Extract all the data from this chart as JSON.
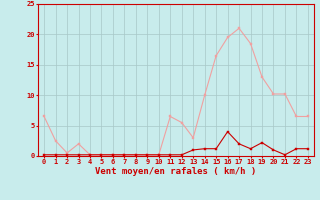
{
  "x": [
    0,
    1,
    2,
    3,
    4,
    5,
    6,
    7,
    8,
    9,
    10,
    11,
    12,
    13,
    14,
    15,
    16,
    17,
    18,
    19,
    20,
    21,
    22,
    23
  ],
  "y_rafales": [
    6.5,
    2.5,
    0.5,
    2.0,
    0.2,
    0.2,
    0.2,
    0.2,
    0.2,
    0.2,
    0.2,
    6.5,
    5.5,
    3.0,
    10.0,
    16.5,
    19.5,
    21.0,
    18.5,
    13.0,
    10.2,
    10.2,
    6.5,
    6.5
  ],
  "y_moyen": [
    0.2,
    0.2,
    0.2,
    0.2,
    0.2,
    0.2,
    0.2,
    0.2,
    0.2,
    0.2,
    0.2,
    0.2,
    0.2,
    1.0,
    1.2,
    1.2,
    4.0,
    2.0,
    1.2,
    2.2,
    1.0,
    0.2,
    1.2,
    1.2
  ],
  "color_rafales": "#f0a0a0",
  "color_moyen": "#cc0000",
  "bg_color": "#c8ecec",
  "grid_color": "#a8c8c8",
  "xlabel": "Vent moyen/en rafales ( km/h )",
  "ylim": [
    0,
    25
  ],
  "xlim_min": -0.5,
  "xlim_max": 23.5,
  "yticks": [
    0,
    5,
    10,
    15,
    20,
    25
  ],
  "xticks": [
    0,
    1,
    2,
    3,
    4,
    5,
    6,
    7,
    8,
    9,
    10,
    11,
    12,
    13,
    14,
    15,
    16,
    17,
    18,
    19,
    20,
    21,
    22,
    23
  ],
  "tick_fontsize": 5,
  "xlabel_fontsize": 6.5,
  "marker_size": 2,
  "line_width": 0.8
}
